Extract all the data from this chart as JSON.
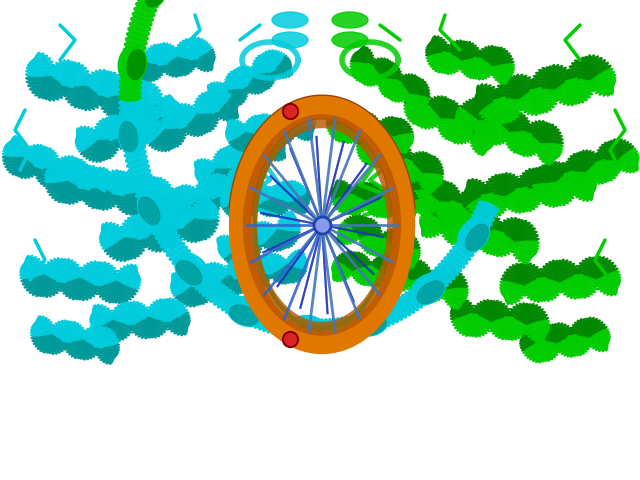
{
  "background_color": "#ffffff",
  "figure_width": 6.4,
  "figure_height": 4.8,
  "dpi": 100,
  "cyan": "#00CCDD",
  "cyan_dark": "#009999",
  "green": "#00CC00",
  "green_dark": "#008800",
  "orange": "#CC6600",
  "orange_light": "#E07800",
  "blue_dna": "#2233BB",
  "blue_dna2": "#4466CC",
  "red_accent": "#CC3333",
  "teal": "#00AAAA"
}
